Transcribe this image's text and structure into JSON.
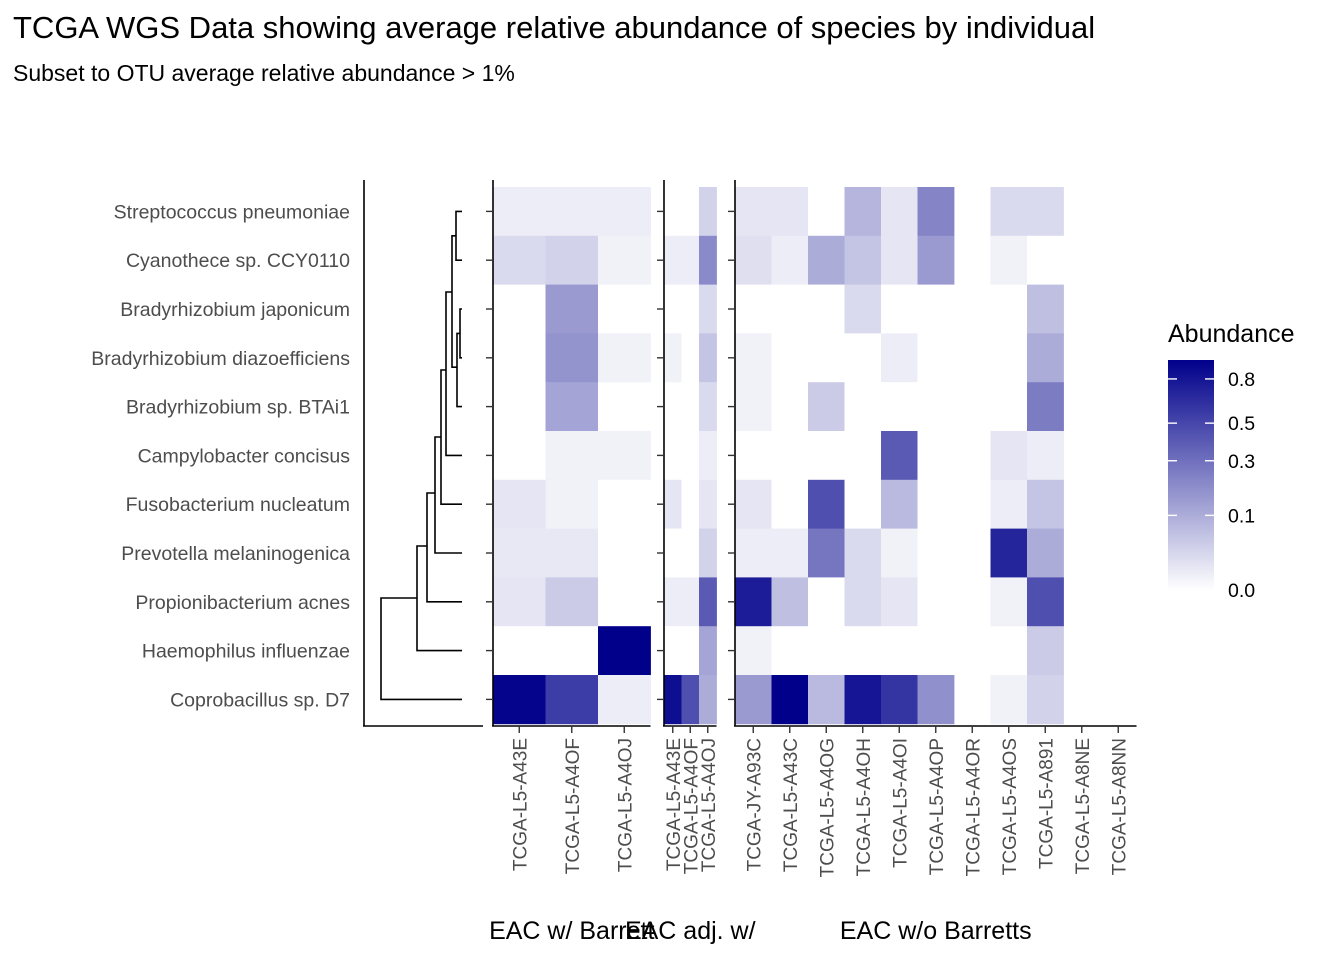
{
  "title": "TCGA WGS Data showing average relative abundance of species by individual",
  "subtitle": "Subset to OTU average relative abundance > 1%",
  "chart_data": {
    "type": "heatmap",
    "rows": [
      "Streptococcus pneumoniae",
      "Cyanothece sp. CCY0110",
      "Bradyrhizobium japonicum",
      "Bradyrhizobium diazoefficiens",
      "Bradyrhizobium sp. BTAi1",
      "Campylobacter concisus",
      "Fusobacterium nucleatum",
      "Prevotella melaninogenica",
      "Propionibacterium acnes",
      "Haemophilus influenzae",
      "Coprobacillus sp. D7"
    ],
    "panels": [
      {
        "label": "EAC w/ Barrett",
        "columns": [
          "TCGA-L5-A43E",
          "TCGA-L5-A4OF",
          "TCGA-L5-A4OJ"
        ],
        "values": [
          [
            0.005,
            0.005,
            0.005
          ],
          [
            0.02,
            0.03,
            0.003
          ],
          [
            0.0,
            0.15,
            0.0
          ],
          [
            0.0,
            0.17,
            0.003
          ],
          [
            0.0,
            0.12,
            0.0
          ],
          [
            0.0,
            0.003,
            0.003
          ],
          [
            0.01,
            0.003,
            0.0
          ],
          [
            0.008,
            0.008,
            0.0
          ],
          [
            0.01,
            0.04,
            0.0
          ],
          [
            0.0,
            0.0,
            0.95
          ],
          [
            0.92,
            0.55,
            0.005
          ]
        ]
      },
      {
        "label": "EAC adj. w/",
        "columns": [
          "TCGA-L5-A43E",
          "TCGA-L5-A4OF",
          "TCGA-L5-A4OJ"
        ],
        "values": [
          [
            0.0,
            0.0,
            0.03
          ],
          [
            0.005,
            0.005,
            0.2
          ],
          [
            0.0,
            0.0,
            0.02
          ],
          [
            0.003,
            0.0,
            0.05
          ],
          [
            0.0,
            0.0,
            0.02
          ],
          [
            0.0,
            0.0,
            0.005
          ],
          [
            0.01,
            0.0,
            0.01
          ],
          [
            0.0,
            0.0,
            0.03
          ],
          [
            0.005,
            0.005,
            0.4
          ],
          [
            0.0,
            0.0,
            0.12
          ],
          [
            0.85,
            0.45,
            0.1
          ]
        ]
      },
      {
        "label": "EAC w/o Barretts",
        "columns": [
          "TCGA-JY-A93C",
          "TCGA-L5-A43C",
          "TCGA-L5-A4OG",
          "TCGA-L5-A4OH",
          "TCGA-L5-A4OI",
          "TCGA-L5-A4OP",
          "TCGA-L5-A4OR",
          "TCGA-L5-A4OS",
          "TCGA-L5-A891",
          "TCGA-L5-A8NE",
          "TCGA-L5-A8NN"
        ],
        "values": [
          [
            0.01,
            0.01,
            0.0,
            0.08,
            0.01,
            0.22,
            null,
            0.02,
            0.02,
            null,
            null
          ],
          [
            0.015,
            0.005,
            0.1,
            0.05,
            0.01,
            0.15,
            null,
            0.003,
            0.0,
            null,
            null
          ],
          [
            0.0,
            0.0,
            0.0,
            0.02,
            0.0,
            0.0,
            null,
            0.0,
            0.06,
            null,
            null
          ],
          [
            0.003,
            0.0,
            0.0,
            0.0,
            0.005,
            0.0,
            null,
            0.0,
            0.1,
            null,
            null
          ],
          [
            0.003,
            0.0,
            0.04,
            0.0,
            0.0,
            0.0,
            null,
            0.0,
            0.25,
            null,
            null
          ],
          [
            0.0,
            0.0,
            0.0,
            0.0,
            0.4,
            0.0,
            null,
            0.01,
            0.005,
            null,
            null
          ],
          [
            0.01,
            0.0,
            0.45,
            0.0,
            0.07,
            0.0,
            null,
            0.005,
            0.05,
            null,
            null
          ],
          [
            0.005,
            0.005,
            0.28,
            0.02,
            0.003,
            0.0,
            null,
            0.7,
            0.1,
            null,
            null
          ],
          [
            0.75,
            0.06,
            0.0,
            0.02,
            0.01,
            0.0,
            null,
            0.003,
            0.45,
            null,
            null
          ],
          [
            0.003,
            0.0,
            0.0,
            0.0,
            0.0,
            0.0,
            null,
            0.0,
            0.04,
            null,
            null
          ],
          [
            0.15,
            0.95,
            0.07,
            0.8,
            0.6,
            0.18,
            null,
            0.003,
            0.03,
            null,
            null
          ]
        ]
      }
    ],
    "legend": {
      "title": "Abundance",
      "ticks": [
        0.0,
        0.1,
        0.3,
        0.5,
        0.8
      ],
      "tick_labels": [
        "0.0",
        "0.1",
        "0.3",
        "0.5",
        "0.8"
      ],
      "scale": "sqrt",
      "range": [
        0,
        0.95
      ],
      "low_color": "#ffffff",
      "high_color": "#00008b"
    },
    "legend_placement": "right"
  }
}
